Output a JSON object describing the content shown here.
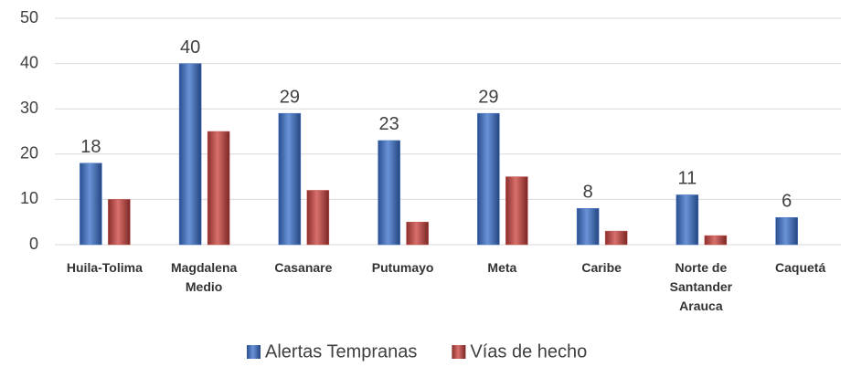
{
  "chart_data": {
    "type": "bar",
    "categories": [
      "Huila-Tolima",
      "Magdalena Medio",
      "Casanare",
      "Putumayo",
      "Meta",
      "Caribe",
      "Norte de Santander Arauca",
      "Caquetá"
    ],
    "series": [
      {
        "name": "Alertas Tempranas",
        "color": "#4472c4",
        "values": [
          18,
          40,
          29,
          23,
          29,
          8,
          11,
          6
        ],
        "data_labels": true
      },
      {
        "name": "Vías de hecho",
        "color": "#c0504d",
        "values": [
          10,
          25,
          12,
          5,
          15,
          3,
          2,
          0
        ]
      }
    ],
    "ylim": [
      0,
      50
    ],
    "yticks": [
      0,
      10,
      20,
      30,
      40,
      50
    ],
    "grid": true,
    "legend": "bottom"
  }
}
